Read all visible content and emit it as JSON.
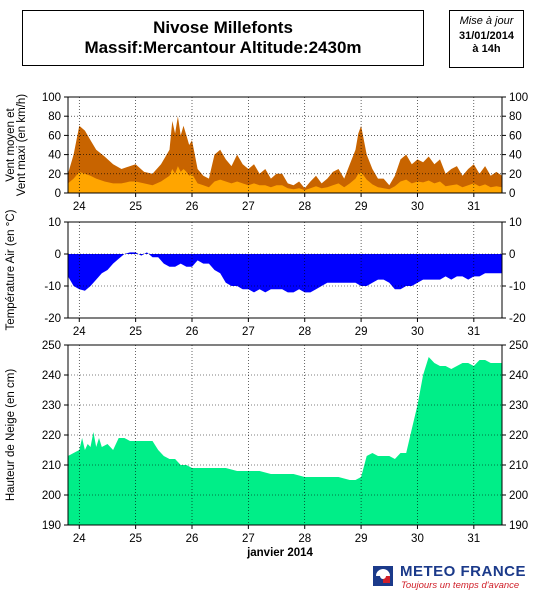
{
  "header": {
    "title_line1": "Nivose Millefonts",
    "title_line2": "Massif:Mercantour Altitude:2430m",
    "update_label": "Mise à jour",
    "update_date": "31/01/2014",
    "update_time": "à 14h"
  },
  "footer": {
    "brand": "METEO FRANCE",
    "slogan": "Toujours un temps d'avance",
    "logo_icon": "meteo-france-logo-icon"
  },
  "chart_data": [
    {
      "type": "area",
      "ylabel": "Vent moyen et\nVent maxi (en km/h)",
      "ylim": [
        0,
        100
      ],
      "yticks": [
        0,
        20,
        40,
        60,
        80,
        100
      ],
      "xticks": [
        "24",
        "25",
        "26",
        "27",
        "28",
        "29",
        "30",
        "31"
      ],
      "xlim": [
        23.8,
        31.5
      ],
      "grid": true,
      "series": [
        {
          "color": "#c86400",
          "x": [
            23.8,
            23.9,
            24.0,
            24.1,
            24.2,
            24.3,
            24.45,
            24.6,
            24.75,
            24.9,
            25.0,
            25.15,
            25.3,
            25.45,
            25.6,
            25.65,
            25.7,
            25.75,
            25.8,
            25.85,
            25.9,
            25.95,
            26.0,
            26.05,
            26.1,
            26.2,
            26.3,
            26.4,
            26.5,
            26.6,
            26.7,
            26.8,
            26.9,
            27.0,
            27.1,
            27.2,
            27.3,
            27.4,
            27.5,
            27.6,
            27.7,
            27.8,
            27.9,
            28.0,
            28.1,
            28.2,
            28.3,
            28.4,
            28.5,
            28.6,
            28.7,
            28.8,
            28.9,
            28.95,
            29.0,
            29.05,
            29.1,
            29.2,
            29.3,
            29.4,
            29.5,
            29.6,
            29.7,
            29.8,
            29.9,
            30.0,
            30.1,
            30.2,
            30.3,
            30.4,
            30.5,
            30.6,
            30.7,
            30.8,
            30.9,
            31.0,
            31.1,
            31.2,
            31.3,
            31.4,
            31.5
          ],
          "values": [
            20,
            40,
            70,
            65,
            55,
            45,
            38,
            30,
            25,
            28,
            30,
            22,
            20,
            30,
            45,
            75,
            62,
            80,
            60,
            70,
            60,
            50,
            55,
            40,
            25,
            18,
            15,
            40,
            45,
            35,
            28,
            40,
            30,
            25,
            30,
            20,
            25,
            15,
            20,
            20,
            10,
            8,
            12,
            5,
            12,
            18,
            10,
            15,
            22,
            25,
            15,
            30,
            45,
            62,
            70,
            55,
            40,
            25,
            15,
            15,
            8,
            18,
            35,
            40,
            30,
            35,
            32,
            38,
            30,
            35,
            20,
            25,
            28,
            18,
            25,
            30,
            20,
            28,
            18,
            22,
            18
          ]
        },
        {
          "color": "#ffa500",
          "x": [
            23.8,
            23.9,
            24.0,
            24.1,
            24.2,
            24.3,
            24.45,
            24.6,
            24.75,
            24.9,
            25.0,
            25.15,
            25.3,
            25.45,
            25.6,
            25.65,
            25.7,
            25.75,
            25.8,
            25.85,
            25.9,
            25.95,
            26.0,
            26.05,
            26.1,
            26.2,
            26.3,
            26.4,
            26.5,
            26.6,
            26.7,
            26.8,
            26.9,
            27.0,
            27.1,
            27.2,
            27.3,
            27.4,
            27.5,
            27.6,
            27.7,
            27.8,
            27.9,
            28.0,
            28.1,
            28.2,
            28.3,
            28.4,
            28.5,
            28.6,
            28.7,
            28.8,
            28.9,
            28.95,
            29.0,
            29.05,
            29.1,
            29.2,
            29.3,
            29.4,
            29.5,
            29.6,
            29.7,
            29.8,
            29.9,
            30.0,
            30.1,
            30.2,
            30.3,
            30.4,
            30.5,
            30.6,
            30.7,
            30.8,
            30.9,
            31.0,
            31.1,
            31.2,
            31.3,
            31.4,
            31.5
          ],
          "values": [
            10,
            15,
            22,
            20,
            18,
            15,
            12,
            10,
            10,
            12,
            12,
            10,
            8,
            12,
            18,
            25,
            20,
            28,
            22,
            25,
            22,
            18,
            20,
            15,
            10,
            8,
            6,
            12,
            14,
            12,
            10,
            12,
            10,
            8,
            10,
            8,
            8,
            6,
            8,
            8,
            5,
            4,
            5,
            3,
            5,
            7,
            5,
            6,
            8,
            10,
            6,
            10,
            15,
            20,
            22,
            18,
            14,
            9,
            6,
            5,
            4,
            7,
            12,
            14,
            10,
            12,
            11,
            13,
            10,
            12,
            7,
            8,
            9,
            6,
            8,
            10,
            7,
            9,
            6,
            7,
            6
          ]
        }
      ]
    },
    {
      "type": "area",
      "ylabel": "Température Air (en °C)",
      "ylim": [
        -20,
        10
      ],
      "yticks": [
        -20,
        -10,
        0,
        10
      ],
      "xticks": [
        "24",
        "25",
        "26",
        "27",
        "28",
        "29",
        "30",
        "31"
      ],
      "xlim": [
        23.8,
        31.5
      ],
      "grid": true,
      "series": [
        {
          "color": "#0000ff",
          "x": [
            23.8,
            23.9,
            24.0,
            24.1,
            24.2,
            24.3,
            24.4,
            24.5,
            24.6,
            24.7,
            24.8,
            24.9,
            25.0,
            25.1,
            25.2,
            25.3,
            25.4,
            25.5,
            25.6,
            25.7,
            25.8,
            25.9,
            26.0,
            26.1,
            26.2,
            26.3,
            26.4,
            26.5,
            26.6,
            26.7,
            26.8,
            26.9,
            27.0,
            27.1,
            27.2,
            27.3,
            27.4,
            27.5,
            27.6,
            27.7,
            27.8,
            27.9,
            28.0,
            28.1,
            28.2,
            28.3,
            28.4,
            28.5,
            28.6,
            28.7,
            28.8,
            28.9,
            29.0,
            29.1,
            29.2,
            29.3,
            29.4,
            29.5,
            29.6,
            29.7,
            29.8,
            29.9,
            30.0,
            30.1,
            30.2,
            30.3,
            30.4,
            30.5,
            30.6,
            30.7,
            30.8,
            30.9,
            31.0,
            31.1,
            31.2,
            31.3,
            31.4,
            31.5
          ],
          "values": [
            -7,
            -10,
            -11,
            -11.5,
            -10,
            -8,
            -6,
            -5,
            -3,
            -1.5,
            0,
            0.5,
            0.5,
            -0.5,
            0.5,
            -1,
            -1,
            -3,
            -4,
            -4,
            -3,
            -4,
            -4,
            -2,
            -3,
            -3,
            -5,
            -6,
            -9,
            -10,
            -10,
            -11,
            -11,
            -12,
            -11,
            -12,
            -11,
            -11,
            -11,
            -12,
            -12,
            -11,
            -12,
            -12,
            -11,
            -10,
            -9,
            -9,
            -9,
            -9,
            -9,
            -9,
            -10,
            -10,
            -9,
            -8,
            -8,
            -9,
            -11,
            -11,
            -10,
            -10,
            -9,
            -8,
            -8,
            -8,
            -8,
            -7,
            -8,
            -7,
            -7,
            -8,
            -7,
            -7,
            -6,
            -6,
            -6,
            -6
          ]
        }
      ]
    },
    {
      "type": "area",
      "xlabel": "janvier 2014",
      "ylabel": "Hauteur de Neige (en cm)",
      "ylim": [
        190,
        250
      ],
      "yticks": [
        190,
        200,
        210,
        220,
        230,
        240,
        250
      ],
      "xticks": [
        "24",
        "25",
        "26",
        "27",
        "28",
        "29",
        "30",
        "31"
      ],
      "xlim": [
        23.8,
        31.5
      ],
      "grid": true,
      "series": [
        {
          "color": "#00ee88",
          "x": [
            23.8,
            23.9,
            24.0,
            24.05,
            24.1,
            24.15,
            24.2,
            24.25,
            24.3,
            24.35,
            24.4,
            24.5,
            24.55,
            24.6,
            24.7,
            24.8,
            24.9,
            25.0,
            25.1,
            25.2,
            25.3,
            25.4,
            25.5,
            25.6,
            25.7,
            25.8,
            25.9,
            26.0,
            26.2,
            26.4,
            26.6,
            26.8,
            27.0,
            27.2,
            27.4,
            27.6,
            27.8,
            28.0,
            28.2,
            28.4,
            28.6,
            28.8,
            28.9,
            29.0,
            29.1,
            29.2,
            29.3,
            29.4,
            29.5,
            29.6,
            29.7,
            29.8,
            29.9,
            30.0,
            30.1,
            30.2,
            30.3,
            30.4,
            30.5,
            30.6,
            30.7,
            30.8,
            30.9,
            31.0,
            31.1,
            31.2,
            31.3,
            31.4,
            31.5
          ],
          "values": [
            213,
            214,
            215,
            219,
            215,
            217,
            216,
            221,
            216,
            219,
            216,
            217,
            216,
            215,
            219,
            219,
            218,
            218,
            218,
            218,
            218,
            215,
            213,
            212,
            212,
            210,
            210,
            209,
            209,
            209,
            209,
            208,
            208,
            208,
            207,
            207,
            207,
            206,
            206,
            206,
            206,
            205,
            205,
            206,
            213,
            214,
            213,
            213,
            213,
            212,
            214,
            214,
            222,
            230,
            240,
            246,
            244,
            243,
            243,
            242,
            243,
            244,
            244,
            243,
            245,
            245,
            244,
            244,
            244
          ]
        }
      ]
    }
  ]
}
